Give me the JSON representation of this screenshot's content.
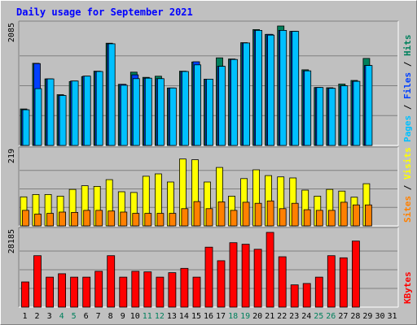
{
  "chart_data": {
    "type": "bar",
    "title": "Daily usage for September 2021",
    "categories": [
      "1",
      "2",
      "3",
      "4",
      "5",
      "6",
      "7",
      "8",
      "9",
      "10",
      "11",
      "12",
      "13",
      "14",
      "15",
      "16",
      "17",
      "18",
      "19",
      "20",
      "21",
      "22",
      "23",
      "24",
      "25",
      "26",
      "27",
      "28",
      "29",
      "30",
      "31"
    ],
    "weekend_days": [
      4,
      5,
      11,
      12,
      18,
      19,
      25,
      26
    ],
    "colors": {
      "title": "#0000ff",
      "hits": "#00805c",
      "files": "#0040ff",
      "pages": "#00c0ff",
      "visits": "#ffff00",
      "sites": "#ff8000",
      "kbytes": "#ff0000",
      "weekday_label": "#000000",
      "weekend_label": "#00805c"
    },
    "panels": [
      {
        "id": "top",
        "ymax_label": "2085",
        "ylim": [
          0,
          2085
        ],
        "legend": [
          {
            "text": "Pages",
            "color": "#00c0ff"
          },
          {
            "text": " / ",
            "color": "#000000"
          },
          {
            "text": "Files",
            "color": "#0040ff"
          },
          {
            "text": " / ",
            "color": "#000000"
          },
          {
            "text": "Hits",
            "color": "#00805c"
          }
        ],
        "series": [
          {
            "name": "Hits",
            "color": "#00805c",
            "values": [
              637,
              1434,
              1161,
              887,
              1115,
              1201,
              1296,
              1784,
              1066,
              1280,
              1188,
              1208,
              1003,
              1296,
              1457,
              1157,
              1529,
              1509,
              1794,
              2023,
              1939,
              2085,
              1991,
              1321,
              1012,
              1007,
              1072,
              1135,
              1519,
              0,
              0
            ]
          },
          {
            "name": "Files",
            "color": "#0040ff",
            "values": [
              622,
              1429,
              1161,
              872,
              1125,
              1210,
              1291,
              1774,
              1066,
              1233,
              1174,
              1166,
              1003,
              1291,
              1461,
              1157,
              1382,
              1500,
              1789,
              2008,
              1939,
              2008,
              1991,
              1302,
              1012,
              997,
              1041,
              1119,
              1396,
              0,
              0
            ]
          },
          {
            "name": "Pages",
            "color": "#00c0ff",
            "values": [
              622,
              992,
              1161,
              872,
              1125,
              1210,
              1291,
              1774,
              1051,
              1166,
              1174,
              1166,
              1003,
              1291,
              1407,
              1157,
              1382,
              1500,
              1789,
              2008,
              1926,
              2008,
              1991,
              1302,
              1012,
              997,
              1041,
              1119,
              1396,
              0,
              0
            ]
          }
        ]
      },
      {
        "id": "middle",
        "ymax_label": "219",
        "ylim": [
          0,
          219
        ],
        "legend": [
          {
            "text": "Sites",
            "color": "#ff8000"
          },
          {
            "text": " / ",
            "color": "#000000"
          },
          {
            "text": "Visits",
            "color": "#ffff00"
          }
        ],
        "series": [
          {
            "name": "Visits",
            "color": "#ffff00",
            "values": [
              86,
              93,
              93,
              88,
              108,
              119,
              117,
              137,
              101,
              99,
              147,
              154,
              130,
              198,
              196,
              130,
              173,
              88,
              140,
              166,
              149,
              145,
              142,
              106,
              88,
              108,
              103,
              85,
              125,
              0,
              0
            ]
          },
          {
            "name": "Sites",
            "color": "#ff8000",
            "values": [
              46,
              35,
              37,
              41,
              40,
              46,
              46,
              44,
              41,
              37,
              37,
              37,
              37,
              51,
              72,
              51,
              71,
              46,
              70,
              67,
              74,
              51,
              67,
              48,
              46,
              46,
              70,
              62,
              62,
              0,
              0
            ]
          }
        ]
      },
      {
        "id": "bottom",
        "ymax_label": "28185",
        "ylim": [
          0,
          28185
        ],
        "legend": [
          {
            "text": "KBytes",
            "color": "#ff0000"
          }
        ],
        "series": [
          {
            "name": "KBytes",
            "color": "#ff0000",
            "values": [
              9500,
              19400,
              11300,
              12600,
              11300,
              11300,
              13500,
              19400,
              11300,
              13500,
              13300,
              11300,
              13000,
              14600,
              11300,
              22600,
              17500,
              24300,
              23700,
              21800,
              28185,
              19000,
              8400,
              8900,
              11300,
              19400,
              18600,
              24900,
              0,
              0,
              0
            ]
          }
        ]
      }
    ]
  }
}
